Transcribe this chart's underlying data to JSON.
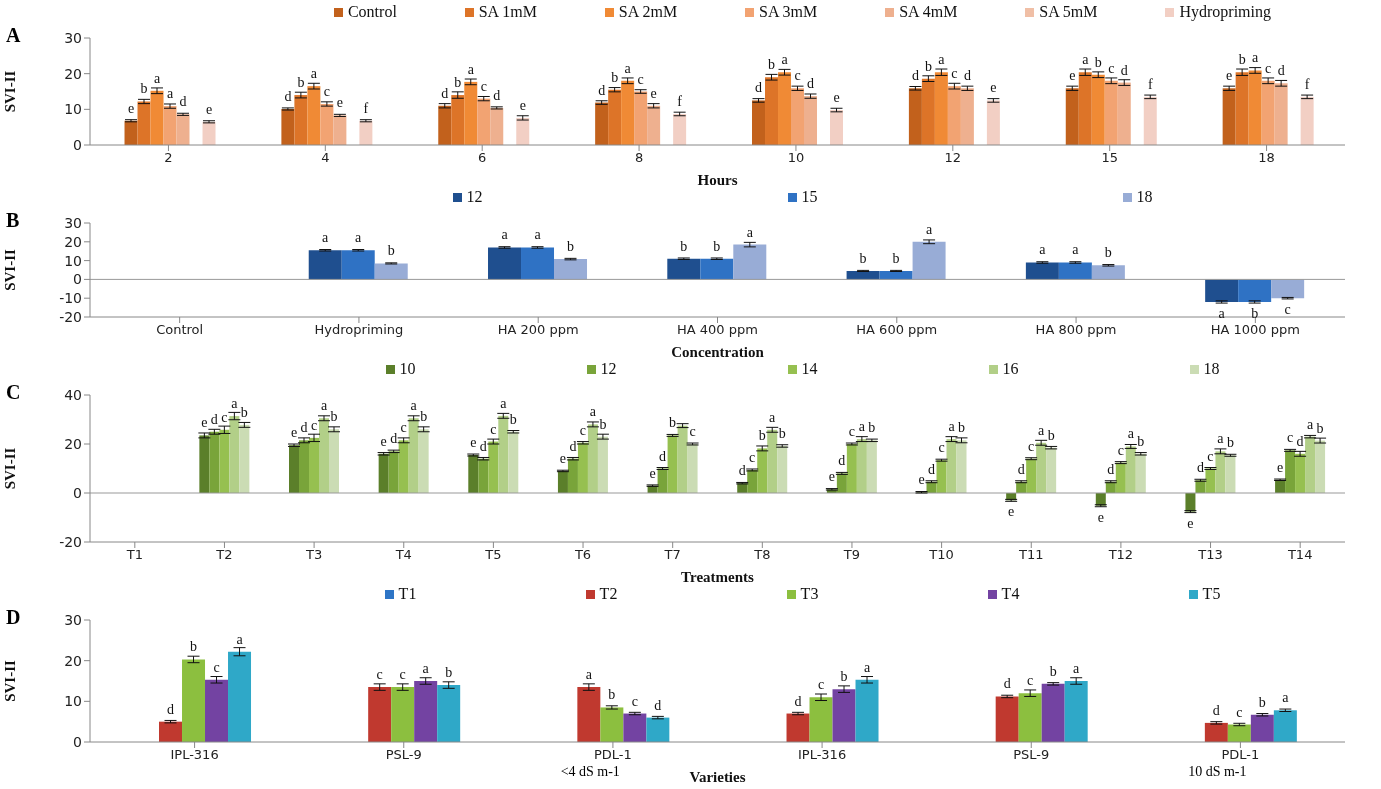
{
  "chart_data": [
    {
      "type": "bar",
      "annotations": [
        "A"
      ],
      "ylabel": "SVI-II",
      "xlabel": "Hours",
      "legend": "top",
      "categories": [
        "2",
        "4",
        "6",
        "8",
        "10",
        "12",
        "15",
        "18"
      ],
      "ylim": [
        0,
        30
      ],
      "yticks": [
        0,
        10,
        20,
        30
      ],
      "series": [
        {
          "name": "Control",
          "color": "#c2611c",
          "values": [
            6.8,
            10.1,
            11,
            11.9,
            12.5,
            15.9,
            15.9,
            15.9
          ],
          "errors": [
            0.3,
            0.3,
            0.6,
            0.5,
            0.5,
            0.5,
            0.6,
            0.6
          ],
          "value_labels": [
            "e",
            "d",
            "d",
            "d",
            "d",
            "d",
            "e",
            "e"
          ]
        },
        {
          "name": "SA 1mM",
          "color": "#dd7428",
          "values": [
            12.2,
            14,
            14,
            15.5,
            19,
            18.6,
            20.4,
            20.4
          ],
          "errors": [
            0.6,
            0.8,
            0.9,
            0.6,
            0.8,
            0.8,
            0.9,
            0.9
          ],
          "value_labels": [
            "b",
            "b",
            "b",
            "b",
            "b",
            "b",
            "a",
            "b"
          ]
        },
        {
          "name": "SA 2mM",
          "color": "#f08a35",
          "values": [
            15.2,
            16.5,
            17.7,
            18,
            20.4,
            20.4,
            19.7,
            20.9
          ],
          "errors": [
            0.8,
            0.8,
            0.8,
            0.8,
            0.8,
            0.9,
            0.8,
            0.8
          ],
          "value_labels": [
            "a",
            "a",
            "a",
            "a",
            "a",
            "a",
            "b",
            "a"
          ]
        },
        {
          "name": "SA 3mM",
          "color": "#f2a372",
          "values": [
            10.9,
            11.5,
            13,
            15,
            15.9,
            16.5,
            18,
            18
          ],
          "errors": [
            0.6,
            0.6,
            0.6,
            0.5,
            0.6,
            0.8,
            0.8,
            0.8
          ],
          "value_labels": [
            "a",
            "c",
            "c",
            "c",
            "c",
            "c",
            "c",
            "c"
          ]
        },
        {
          "name": "SA 4mM",
          "color": "#eeb08f",
          "values": [
            8.6,
            8.3,
            10.4,
            11,
            13.7,
            15.9,
            17.5,
            17.3
          ],
          "errors": [
            0.3,
            0.3,
            0.3,
            0.6,
            0.6,
            0.6,
            0.8,
            0.8
          ],
          "value_labels": [
            "d",
            "e",
            "d",
            "e",
            "d",
            "d",
            "d",
            "d"
          ]
        },
        {
          "name": "SA 5mM",
          "color": "#f0bfa6",
          "values": [
            null,
            null,
            null,
            null,
            null,
            null,
            null,
            null
          ]
        },
        {
          "name": "Hydropriming",
          "color": "#f2cfc4",
          "values": [
            6.5,
            6.8,
            7.6,
            8.7,
            9.8,
            12.5,
            13.5,
            13.5
          ],
          "errors": [
            0.3,
            0.3,
            0.6,
            0.5,
            0.5,
            0.5,
            0.5,
            0.5
          ],
          "value_labels": [
            "e",
            "f",
            "e",
            "f",
            "e",
            "e",
            "f",
            "f"
          ]
        }
      ]
    },
    {
      "type": "bar",
      "annotations": [
        "B"
      ],
      "ylabel": "SVI-II",
      "xlabel": "Concentration",
      "legend": "top",
      "categories": [
        "Control",
        "Hydropriming",
        "HA 200 ppm",
        "HA 400 ppm",
        "HA 600 ppm",
        "HA 800 ppm",
        "HA 1000 ppm"
      ],
      "ylim": [
        -20,
        30
      ],
      "yticks": [
        -20,
        -10,
        0,
        10,
        20,
        30
      ],
      "series": [
        {
          "name": "12",
          "color": "#1f4f8f",
          "values": [
            0,
            15.5,
            17,
            11,
            4.5,
            9,
            -12
          ],
          "errors": [
            null,
            0.4,
            0.4,
            0.4,
            0.3,
            0.4,
            0.6
          ],
          "value_labels": [
            null,
            "a",
            "a",
            "b",
            "b",
            "a",
            "a"
          ]
        },
        {
          "name": "15",
          "color": "#2f72c4",
          "values": [
            0,
            15.5,
            17,
            11,
            4.5,
            9,
            -12
          ],
          "errors": [
            null,
            0.4,
            0.4,
            0.4,
            0.3,
            0.4,
            0.6
          ],
          "value_labels": [
            null,
            "a",
            "a",
            "b",
            "b",
            "a",
            "b"
          ]
        },
        {
          "name": "18",
          "color": "#98acd6",
          "values": [
            0,
            8.5,
            10.8,
            18.5,
            20,
            7.5,
            -10
          ],
          "errors": [
            null,
            0.3,
            0.4,
            1.2,
            1,
            0.4,
            0.4
          ],
          "value_labels": [
            null,
            "b",
            "b",
            "a",
            "a",
            "b",
            "c"
          ]
        }
      ]
    },
    {
      "type": "bar",
      "annotations": [
        "C"
      ],
      "ylabel": "SVI-II",
      "xlabel": "Treatments",
      "legend": "top",
      "categories": [
        "T1",
        "T2",
        "T3",
        "T4",
        "T5",
        "T6",
        "T7",
        "T8",
        "T9",
        "T10",
        "T11",
        "T12",
        "T13",
        "T14"
      ],
      "ylim": [
        -20,
        40
      ],
      "yticks": [
        -20,
        0,
        20,
        40
      ],
      "series": [
        {
          "name": "10",
          "color": "#5b7f2a",
          "values": [
            0,
            23.5,
            19.5,
            16,
            15.5,
            9,
            3,
            4,
            1.5,
            0.3,
            -3,
            -5.2,
            -7.6,
            5.4
          ],
          "errors": [
            null,
            1,
            0.5,
            0.5,
            0.4,
            0.3,
            0.3,
            0.3,
            0.3,
            0.3,
            0.4,
            0.4,
            0.4,
            0.3
          ],
          "value_labels": [
            null,
            "e",
            "e",
            "e",
            "e",
            "e",
            "e",
            "d",
            "e",
            "e",
            "e",
            "e",
            "e",
            "e"
          ]
        },
        {
          "name": "12",
          "color": "#79a43a",
          "values": [
            0,
            25,
            21.5,
            17,
            14,
            14,
            10,
            9.4,
            8,
            4.6,
            4.6,
            4.6,
            5.2,
            17.4
          ],
          "errors": [
            null,
            1,
            1,
            0.5,
            0.5,
            0.5,
            0.4,
            0.4,
            0.4,
            0.4,
            0.4,
            0.4,
            0.4,
            0.4
          ],
          "value_labels": [
            null,
            "d",
            "d",
            "d",
            "d",
            "d",
            "d",
            "c",
            "d",
            "d",
            "d",
            "d",
            "d",
            "c"
          ]
        },
        {
          "name": "14",
          "color": "#96c050",
          "values": [
            0,
            25.8,
            22.5,
            21.5,
            21,
            20.5,
            23.5,
            18.2,
            20,
            13.4,
            14,
            12.4,
            10,
            16
          ],
          "errors": [
            null,
            1.5,
            1.5,
            1,
            1,
            0.5,
            0.4,
            1,
            0.4,
            0.4,
            0.4,
            0.4,
            0.4,
            1
          ],
          "value_labels": [
            null,
            "c",
            "c",
            "c",
            "c",
            "c",
            "b",
            "b",
            "c",
            "c",
            "c",
            "c",
            "c",
            "d"
          ]
        },
        {
          "name": "16",
          "color": "#b2cf88",
          "values": [
            0,
            31.4,
            30.5,
            30.5,
            31.5,
            28,
            27.5,
            25.8,
            22,
            22,
            20.5,
            19,
            17,
            23
          ],
          "errors": [
            null,
            1.5,
            1,
            1,
            1,
            1,
            0.8,
            1,
            1,
            1,
            1,
            0.8,
            1,
            0.5
          ],
          "value_labels": [
            null,
            "a",
            "a",
            "a",
            "a",
            "a",
            null,
            "a",
            "a",
            "a",
            "a",
            "a",
            "a",
            "a"
          ]
        },
        {
          "name": "18",
          "color": "#cbdcb4",
          "values": [
            0,
            27.8,
            26,
            26,
            25,
            23,
            20,
            19.2,
            21.5,
            21.5,
            18.5,
            16,
            15.4,
            21.4
          ],
          "errors": [
            null,
            1,
            1,
            1,
            0.5,
            1,
            0.4,
            0.5,
            0.5,
            1,
            0.5,
            0.5,
            0.4,
            1
          ],
          "value_labels": [
            null,
            "b",
            "b",
            "b",
            "b",
            "b",
            "c",
            "b",
            "b",
            "b",
            "b",
            "b",
            "b",
            "b"
          ]
        }
      ]
    },
    {
      "type": "bar",
      "annotations": [
        "D",
        "<4 dS m-1",
        "10 dS m-1"
      ],
      "ylabel": "SVI-II",
      "xlabel": "Varieties",
      "legend": "top",
      "categories": [
        "IPL-316",
        "PSL-9",
        "PDL-1",
        "IPL-316",
        "PSL-9",
        "PDL-1"
      ],
      "ylim": [
        0,
        30
      ],
      "yticks": [
        0,
        10,
        20,
        30
      ],
      "series": [
        {
          "name": "T1",
          "color": "#2e75c6",
          "values": [
            null,
            null,
            null,
            null,
            null,
            null
          ]
        },
        {
          "name": "T2",
          "color": "#c0392f",
          "values": [
            5,
            13.5,
            13.5,
            7,
            11.2,
            4.7
          ],
          "errors": [
            0.3,
            0.8,
            0.8,
            0.3,
            0.3,
            0.3
          ],
          "value_labels": [
            "d",
            "c",
            "a",
            "d",
            "d",
            "d"
          ]
        },
        {
          "name": "T3",
          "color": "#8cbf3f",
          "values": [
            20.3,
            13.5,
            8.5,
            11,
            12,
            4.3
          ],
          "errors": [
            0.8,
            0.8,
            0.4,
            0.8,
            0.8,
            0.3
          ],
          "value_labels": [
            "b",
            "c",
            "b",
            "c",
            "c",
            "c"
          ]
        },
        {
          "name": "T4",
          "color": "#7343a2",
          "values": [
            15.3,
            15,
            7,
            13,
            14.3,
            6.7
          ],
          "errors": [
            0.8,
            0.8,
            0.3,
            0.8,
            0.3,
            0.3
          ],
          "value_labels": [
            "c",
            "a",
            "c",
            "b",
            "b",
            "b"
          ]
        },
        {
          "name": "T5",
          "color": "#2fa8c8",
          "values": [
            22.2,
            14,
            6,
            15.3,
            15,
            7.8
          ],
          "errors": [
            1,
            0.8,
            0.3,
            0.8,
            0.8,
            0.3
          ],
          "value_labels": [
            "a",
            "b",
            "d",
            "a",
            "a",
            "a"
          ]
        }
      ]
    }
  ]
}
